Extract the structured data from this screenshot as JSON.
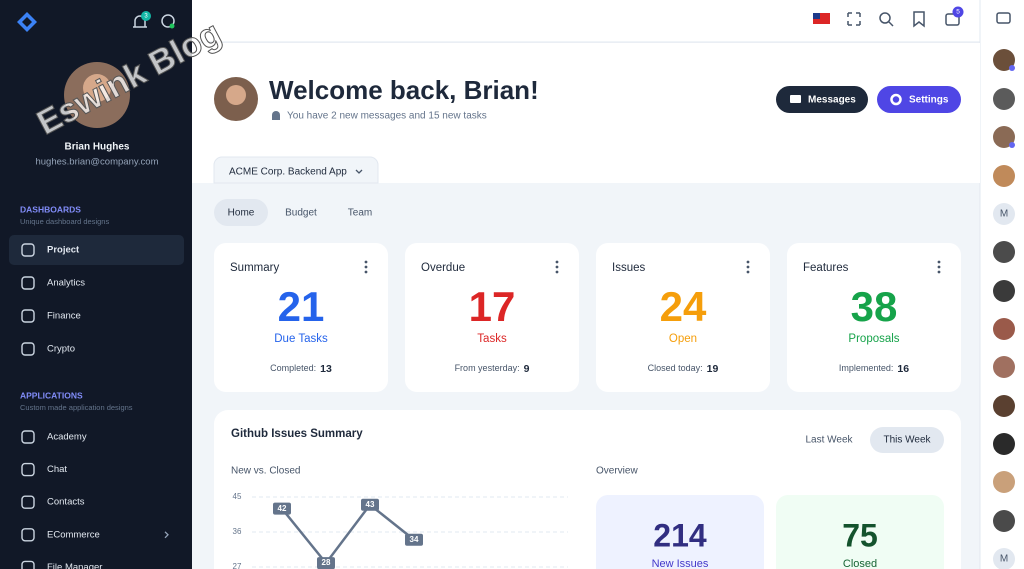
{
  "watermark": "Eswink Blog",
  "sidebar": {
    "notification_badge": 3,
    "user": {
      "name": "Brian Hughes",
      "email": "hughes.brian@company.com"
    },
    "sections": [
      {
        "title": "DASHBOARDS",
        "subtitle": "Unique dashboard designs",
        "items": [
          "Project",
          "Analytics",
          "Finance",
          "Crypto"
        ]
      },
      {
        "title": "APPLICATIONS",
        "subtitle": "Custom made application designs",
        "items": [
          "Academy",
          "Chat",
          "Contacts",
          "ECommerce",
          "File Manager"
        ]
      }
    ]
  },
  "topbar": {
    "mail_badge": 5
  },
  "header": {
    "title": "Welcome back, Brian!",
    "subtitle": "You have 2 new messages and 15 new tasks",
    "buttons": [
      "Messages",
      "Settings"
    ]
  },
  "project_tab": "ACME Corp. Backend App",
  "tabs": [
    "Home",
    "Budget",
    "Team"
  ],
  "cards": [
    {
      "title": "Summary",
      "value": 21,
      "label": "Due Tasks",
      "footer_label": "Completed:",
      "footer_value": 13,
      "color": "#2563eb"
    },
    {
      "title": "Overdue",
      "value": 17,
      "label": "Tasks",
      "footer_label": "From yesterday:",
      "footer_value": 9,
      "color": "#dc2626"
    },
    {
      "title": "Issues",
      "value": 24,
      "label": "Open",
      "footer_label": "Closed today:",
      "footer_value": 19,
      "color": "#f59e0b"
    },
    {
      "title": "Features",
      "value": 38,
      "label": "Proposals",
      "footer_label": "Implemented:",
      "footer_value": 16,
      "color": "#16a34a"
    }
  ],
  "github": {
    "title": "Github Issues Summary",
    "periods": [
      "Last Week",
      "This Week"
    ],
    "chart": {
      "title": "New vs. Closed",
      "ylim": [
        27,
        45
      ],
      "yticks": [
        45,
        36,
        27
      ],
      "values": [
        42,
        28,
        43,
        34
      ],
      "color": "#64748b"
    },
    "overview": {
      "title": "Overview",
      "stats": [
        {
          "value": 214,
          "label": "New Issues"
        },
        {
          "value": 75,
          "label": "Closed"
        }
      ]
    }
  },
  "rail_initials": [
    "M",
    "M"
  ]
}
